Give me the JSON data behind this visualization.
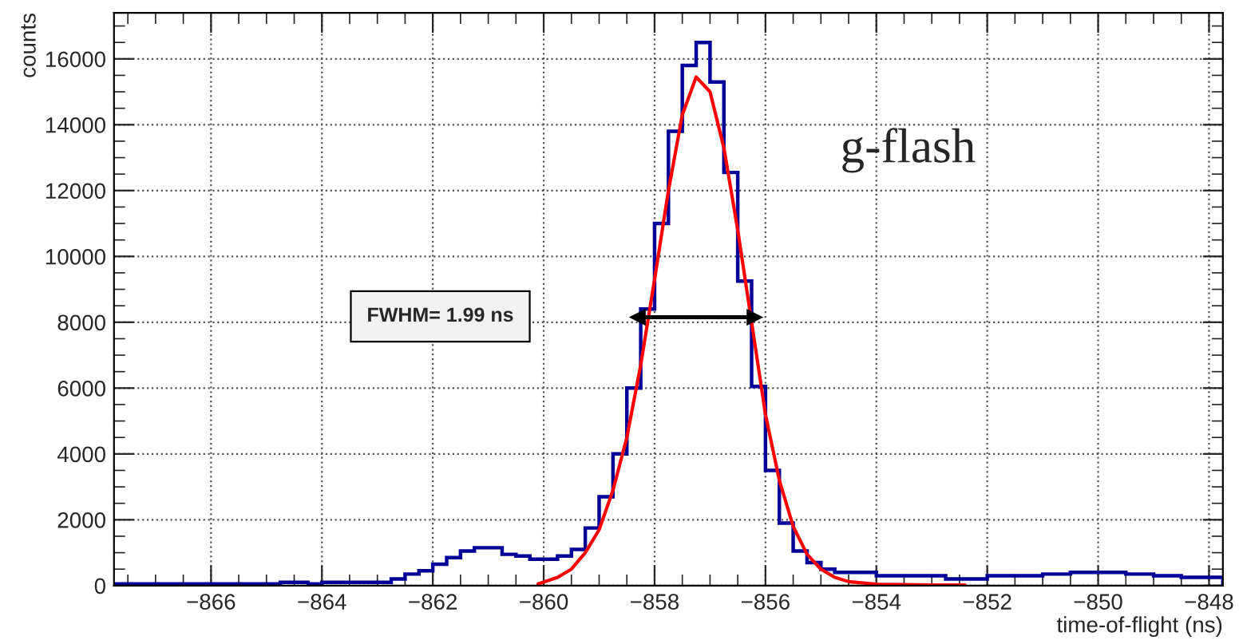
{
  "chart_data": {
    "type": "histogram",
    "xlabel": "time-of-flight (ns)",
    "ylabel": "counts",
    "bins": [
      -867.75,
      -867.5,
      -867.25,
      -867.0,
      -866.75,
      -866.5,
      -866.25,
      -866.0,
      -865.75,
      -865.5,
      -865.25,
      -865.0,
      -864.75,
      -864.5,
      -864.25,
      -864.0,
      -863.75,
      -863.5,
      -863.25,
      -863.0,
      -862.75,
      -862.5,
      -862.25,
      -862.0,
      -861.75,
      -861.5,
      -861.25,
      -861.0,
      -860.75,
      -860.5,
      -860.25,
      -860.0,
      -859.75,
      -859.5,
      -859.25,
      -859.0,
      -858.75,
      -858.5,
      -858.25,
      -858.0,
      -857.75,
      -857.5,
      -857.25,
      -857.0,
      -856.75,
      -856.5,
      -856.25,
      -856.0,
      -855.75,
      -855.5,
      -855.25,
      -855.0,
      -854.75,
      -854.5,
      -854.25,
      -854.0,
      -853.75,
      -853.5,
      -853.25,
      -853.0,
      -852.75,
      -852.5,
      -852.25,
      -852.0,
      -851.75,
      -851.5,
      -851.25,
      -851.0,
      -850.75,
      -850.5,
      -850.25,
      -850.0,
      -849.75,
      -849.5,
      -849.25,
      -849.0,
      -848.75,
      -848.5,
      -848.25,
      -848.0,
      -847.75
    ],
    "series": [
      {
        "color": "#000099",
        "values": [
          50,
          50,
          50,
          50,
          50,
          50,
          50,
          50,
          50,
          50,
          50,
          50,
          100,
          100,
          50,
          100,
          100,
          100,
          100,
          100,
          200,
          350,
          450,
          650,
          850,
          1050,
          1150,
          1150,
          950,
          900,
          800,
          800,
          900,
          1100,
          1750,
          2700,
          4000,
          6000,
          8400,
          11000,
          13800,
          15800,
          16500,
          15300,
          12550,
          9250,
          6050,
          3500,
          1900,
          1050,
          700,
          500,
          400,
          400,
          400,
          300,
          300,
          300,
          300,
          300,
          200,
          200,
          200,
          300,
          300,
          300,
          300,
          350,
          350,
          400,
          400,
          400,
          400,
          350,
          350,
          300,
          300,
          250,
          250,
          250
        ]
      },
      {
        "type": "line",
        "color": "#ff0000",
        "x": [
          -860.1,
          -859.75,
          -859.5,
          -859.25,
          -859.0,
          -858.75,
          -858.5,
          -858.25,
          -858.0,
          -857.75,
          -857.5,
          -857.25,
          -857.0,
          -856.75,
          -856.5,
          -856.25,
          -856.0,
          -855.75,
          -855.5,
          -855.25,
          -855.0,
          -854.75,
          -854.5,
          -854.0,
          -853.0,
          -852.4
        ],
        "values": [
          50,
          250,
          500,
          1000,
          1700,
          2900,
          4500,
          6700,
          9300,
          12000,
          14300,
          15450,
          15000,
          13300,
          10800,
          8000,
          5200,
          3200,
          1800,
          950,
          500,
          250,
          120,
          40,
          20,
          20
        ]
      },
      {
        "type": "line",
        "marker": "triangle",
        "color": "#000000",
        "x": [
          -858.3,
          -856.2
        ],
        "values": [
          8150,
          8150
        ]
      }
    ],
    "xlim": [
      -867.75,
      -847.75
    ],
    "ylim": [
      0,
      17400
    ],
    "xticks": [
      {
        "value": -866,
        "label": "−866"
      },
      {
        "value": -864,
        "label": "−864"
      },
      {
        "value": -862,
        "label": "−862"
      },
      {
        "value": -860,
        "label": "−860"
      },
      {
        "value": -858,
        "label": "−858"
      },
      {
        "value": -856,
        "label": "−856"
      },
      {
        "value": -854,
        "label": "−854"
      },
      {
        "value": -852,
        "label": "−852"
      },
      {
        "value": -850,
        "label": "−850"
      },
      {
        "value": -848,
        "label": "−848"
      }
    ],
    "yticks": [
      0,
      2000,
      4000,
      6000,
      8000,
      10000,
      12000,
      14000,
      16000
    ],
    "grid": true,
    "legend": false,
    "annotations": [
      "FWHM= 1.99 ns",
      "g-flash"
    ]
  }
}
